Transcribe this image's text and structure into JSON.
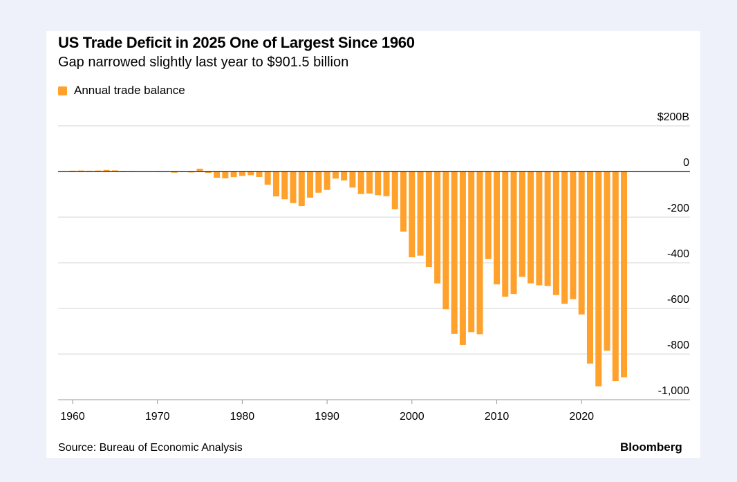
{
  "chart_data": {
    "type": "bar",
    "title": "US Trade Deficit in 2025 One of Largest Since 1960",
    "subtitle": "Gap narrowed slightly last year to $901.5 billion",
    "legend": [
      "Annual trade balance"
    ],
    "legend_position": "top-left",
    "color": "#ffa12b",
    "x": [
      1960,
      1961,
      1962,
      1963,
      1964,
      1965,
      1966,
      1967,
      1968,
      1969,
      1970,
      1971,
      1972,
      1973,
      1974,
      1975,
      1976,
      1977,
      1978,
      1979,
      1980,
      1981,
      1982,
      1983,
      1984,
      1985,
      1986,
      1987,
      1988,
      1989,
      1990,
      1991,
      1992,
      1993,
      1994,
      1995,
      1996,
      1997,
      1998,
      1999,
      2000,
      2001,
      2002,
      2003,
      2004,
      2005,
      2006,
      2007,
      2008,
      2009,
      2010,
      2011,
      2012,
      2013,
      2014,
      2015,
      2016,
      2017,
      2018,
      2019,
      2020,
      2021,
      2022,
      2023,
      2024,
      2025
    ],
    "series": [
      {
        "name": "Annual trade balance",
        "values": [
          3.5,
          4.2,
          3.4,
          4.2,
          6.8,
          4.9,
          2.9,
          2.6,
          0.3,
          0.1,
          2.3,
          -1.3,
          -5.4,
          1.9,
          -4.3,
          12.4,
          -6.1,
          -27.2,
          -29.8,
          -24.6,
          -19.4,
          -16.2,
          -24.2,
          -57.8,
          -109.1,
          -121.9,
          -138.5,
          -151.7,
          -114.6,
          -93.1,
          -80.9,
          -31.1,
          -39.2,
          -70.3,
          -98.5,
          -96.4,
          -104.1,
          -108.3,
          -164.9,
          -263.2,
          -375.8,
          -368.7,
          -418.2,
          -490.5,
          -603.8,
          -711.6,
          -760.4,
          -704.0,
          -713.2,
          -383.8,
          -494.7,
          -548.6,
          -536.8,
          -461.9,
          -490.2,
          -498.5,
          -502.0,
          -541.5,
          -579.9,
          -559.4,
          -626.4,
          -841.6,
          -941.2,
          -784.9,
          -918.4,
          -901.5
        ]
      }
    ],
    "ylim": [
      -1000,
      200
    ],
    "yticks": [
      200,
      0,
      -200,
      -400,
      -600,
      -800,
      -1000
    ],
    "ytick_labels": [
      "$200B",
      "0",
      "-200",
      "-400",
      "-600",
      "-800",
      "-1,000"
    ],
    "xticks": [
      1960,
      1970,
      1980,
      1990,
      2000,
      2010,
      2020
    ],
    "xtick_labels": [
      "1960",
      "1970",
      "1980",
      "1990",
      "2000",
      "2010",
      "2020"
    ],
    "grid": "horizontal",
    "y_axis_side": "right"
  },
  "source": "Source: Bureau of Economic Analysis",
  "brand": "Bloomberg"
}
